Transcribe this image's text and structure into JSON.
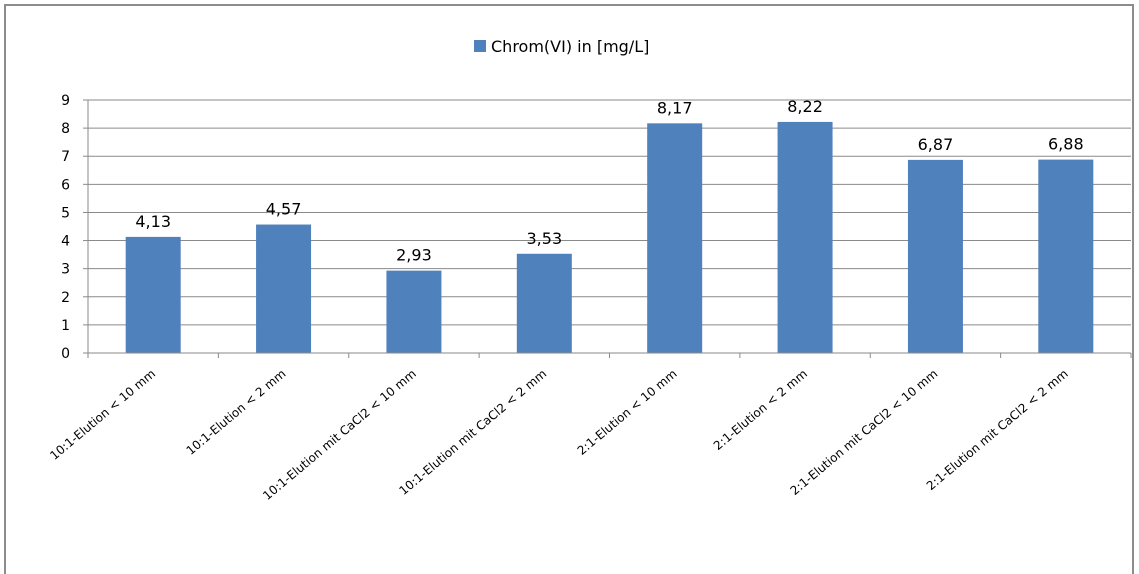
{
  "chart_data": {
    "type": "bar",
    "categories": [
      "10:1-Elution < 10 mm",
      "10:1-Elution < 2 mm",
      "10:1-Elution mit CaCl2 < 10 mm",
      "10:1-Elution mit CaCl2 < 2 mm",
      "2:1-Elution < 10 mm",
      "2:1-Elution < 2 mm",
      "2:1-Elution mit CaCl2 < 10 mm",
      "2:1-Elution mit CaCl2 < 2 mm"
    ],
    "series": [
      {
        "name": "Chrom(VI) in [mg/L]",
        "values": [
          4.13,
          4.57,
          2.93,
          3.53,
          8.17,
          8.22,
          6.87,
          6.88
        ],
        "value_labels": [
          "4,13",
          "4,57",
          "2,93",
          "3,53",
          "8,17",
          "8,22",
          "6,87",
          "6,88"
        ],
        "color": "#4f81bd"
      }
    ],
    "yticks": [
      "0",
      "1",
      "2",
      "3",
      "4",
      "5",
      "6",
      "7",
      "8",
      "9"
    ],
    "ylim": [
      0,
      9
    ],
    "grid": true,
    "legend_position": "top-center"
  }
}
